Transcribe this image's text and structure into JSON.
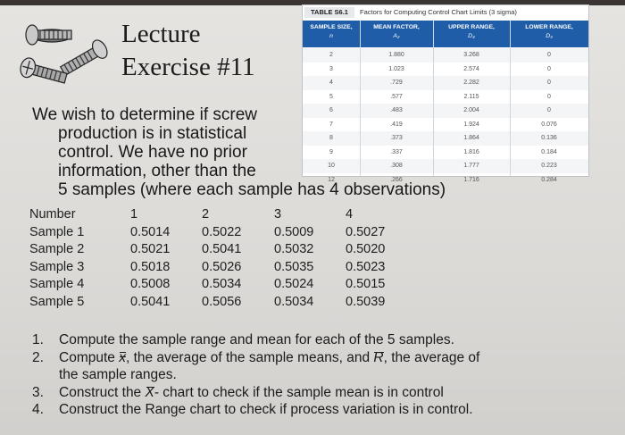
{
  "lecture": {
    "line1": "Lecture",
    "line2": "Exercise #11"
  },
  "factor_table": {
    "tag": "TABLE S6.1",
    "caption": "Factors for Computing Control Chart Limits (3 sigma)",
    "headers": [
      {
        "label": "SAMPLE SIZE,",
        "sub": "n"
      },
      {
        "label": "MEAN FACTOR,",
        "sub": "A₂"
      },
      {
        "label": "UPPER RANGE,",
        "sub": "D₄"
      },
      {
        "label": "LOWER RANGE,",
        "sub": "D₃"
      }
    ],
    "rows": [
      [
        "2",
        "1.880",
        "3.268",
        "0"
      ],
      [
        "3",
        "1.023",
        "2.574",
        "0"
      ],
      [
        "4",
        ".729",
        "2.282",
        "0"
      ],
      [
        "5",
        ".577",
        "2.115",
        "0"
      ],
      [
        "6",
        ".483",
        "2.004",
        "0"
      ],
      [
        "7",
        ".419",
        "1.924",
        "0.076"
      ],
      [
        "8",
        ".373",
        "1.864",
        "0.136"
      ],
      [
        "9",
        ".337",
        "1.816",
        "0.184"
      ],
      [
        "10",
        ".308",
        "1.777",
        "0.223"
      ],
      [
        "12",
        ".266",
        "1.716",
        "0.284"
      ]
    ]
  },
  "intro": {
    "line1": "We wish to determine if screw",
    "line2": "production is in statistical",
    "line3": "control. We have no prior",
    "line4": "information, other than the",
    "line5": "5 samples (where each sample has 4 observations)"
  },
  "samples": {
    "header": [
      "Number",
      "1",
      "2",
      "3",
      "4"
    ],
    "rows": [
      [
        "Sample 1",
        "0.5014",
        "0.5022",
        "0.5009",
        "0.5027"
      ],
      [
        "Sample 2",
        "0.5021",
        "0.5041",
        "0.5032",
        "0.5020"
      ],
      [
        "Sample 3",
        "0.5018",
        "0.5026",
        "0.5035",
        "0.5023"
      ],
      [
        "Sample 4",
        "0.5008",
        "0.5034",
        "0.5024",
        "0.5015"
      ],
      [
        "Sample 5",
        "0.5041",
        "0.5056",
        "0.5034",
        "0.5039"
      ]
    ]
  },
  "tasks": {
    "t1": {
      "num": "1.",
      "text": "Compute the sample range and mean for each of the 5 samples."
    },
    "t2": {
      "num": "2.",
      "pre": "Compute ",
      "sym1": "x",
      "mid": ", the average of the sample means, and ",
      "sym2": "R",
      "post": ", the average of",
      "cont": "the sample ranges."
    },
    "t3": {
      "num": "3.",
      "pre": "Construct the ",
      "sym": "X",
      "post": "- chart to check if the sample mean is in control"
    },
    "t4": {
      "num": "4.",
      "text": "Construct the Range chart to check if process variation is in control."
    }
  },
  "icons": {
    "illustration": "screws-icon"
  }
}
